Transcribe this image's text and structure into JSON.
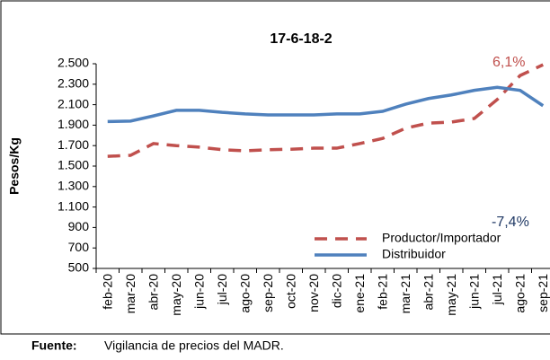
{
  "chart_data": {
    "type": "line",
    "title": "17-6-18-2",
    "y_label": "Pesos/Kg",
    "categories": [
      "feb-20",
      "mar-20",
      "abr-20",
      "may-20",
      "jun-20",
      "jul-20",
      "ago-20",
      "sep-20",
      "oct-20",
      "nov-20",
      "dic-20",
      "ene-21",
      "feb-21",
      "mar-21",
      "abr-21",
      "may-21",
      "jun-21",
      "jul-21",
      "ago-21",
      "sep-21"
    ],
    "series": [
      {
        "name": "Productor/Importador",
        "color": "#c0504d",
        "dashed": true,
        "values": [
          1595,
          1605,
          1720,
          1700,
          1685,
          1660,
          1650,
          1660,
          1665,
          1675,
          1675,
          1720,
          1770,
          1870,
          1920,
          1930,
          1965,
          2150,
          2385,
          2490
        ]
      },
      {
        "name": "Distribuidor",
        "color": "#4f81bd",
        "dashed": false,
        "values": [
          1935,
          1940,
          1990,
          2045,
          2045,
          2025,
          2010,
          2000,
          2000,
          2000,
          2010,
          2010,
          2035,
          2105,
          2160,
          2195,
          2240,
          2270,
          2240,
          2090
        ]
      }
    ],
    "annotations": [
      {
        "text": "6,1%",
        "color": "#c0504d"
      },
      {
        "text": "-7,4%",
        "color": "#1f3864"
      }
    ],
    "ylim": [
      500,
      2500
    ],
    "yticks": [
      {
        "value": 500,
        "label": "500"
      },
      {
        "value": 700,
        "label": "700"
      },
      {
        "value": 900,
        "label": "900"
      },
      {
        "value": 1100,
        "label": "1.100"
      },
      {
        "value": 1300,
        "label": "1.300"
      },
      {
        "value": 1500,
        "label": "1.500"
      },
      {
        "value": 1700,
        "label": "1.700"
      },
      {
        "value": 1900,
        "label": "1.900"
      },
      {
        "value": 2100,
        "label": "2.100"
      },
      {
        "value": 2300,
        "label": "2.300"
      },
      {
        "value": 2500,
        "label": "2.500"
      }
    ],
    "grid": false,
    "legend": "lower right"
  },
  "footer": {
    "label": "Fuente:",
    "text": "Vigilancia de precios del MADR."
  }
}
